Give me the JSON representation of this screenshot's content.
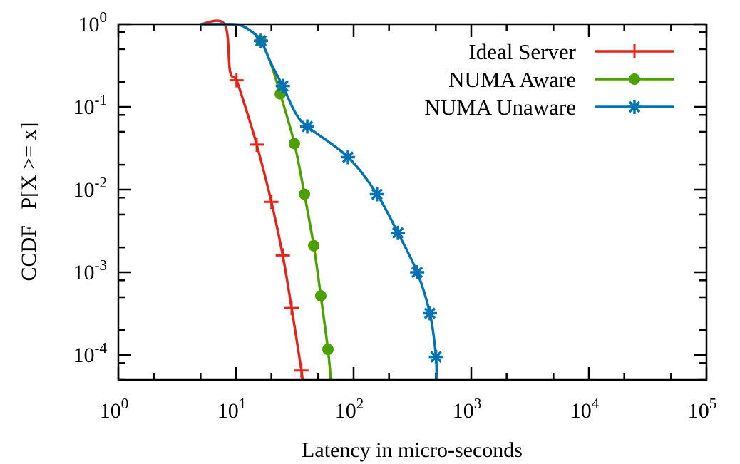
{
  "chart_data": {
    "type": "line",
    "title": "",
    "xlabel": "Latency in micro-seconds",
    "ylabel": "CCDF   P[X >= x]",
    "xscale": "log",
    "yscale": "log",
    "xlim": [
      1,
      100000
    ],
    "ylim": [
      5e-05,
      1
    ],
    "x_tick_labels": [
      {
        "base": "10",
        "exp": "0"
      },
      {
        "base": "10",
        "exp": "1"
      },
      {
        "base": "10",
        "exp": "2"
      },
      {
        "base": "10",
        "exp": "3"
      },
      {
        "base": "10",
        "exp": "4"
      },
      {
        "base": "10",
        "exp": "5"
      }
    ],
    "y_tick_labels": [
      {
        "base": "10",
        "exp": "0"
      },
      {
        "base": "10",
        "exp": "-1"
      },
      {
        "base": "10",
        "exp": "-2"
      },
      {
        "base": "10",
        "exp": "-3"
      },
      {
        "base": "10",
        "exp": "-4"
      }
    ],
    "grid": false,
    "legend_position": "top-right",
    "series": [
      {
        "name": "Ideal Server",
        "color": "#e3241b",
        "marker": "plus",
        "line": [
          [
            5,
            1
          ],
          [
            8,
            1
          ],
          [
            8.9,
            0.27
          ],
          [
            10.1,
            0.21
          ],
          [
            12,
            0.1
          ],
          [
            15,
            0.035
          ],
          [
            20,
            0.0071
          ],
          [
            25,
            0.0016
          ],
          [
            29.7,
            0.00037
          ],
          [
            36,
            6.5e-05
          ],
          [
            36.5,
            5e-05
          ]
        ],
        "markers": [
          [
            10.1,
            0.21
          ],
          [
            15,
            0.035
          ],
          [
            20,
            0.0071
          ],
          [
            25,
            0.0016
          ],
          [
            29.7,
            0.00037
          ],
          [
            36,
            6.5e-05
          ]
        ]
      },
      {
        "name": "NUMA Aware",
        "color": "#4ca000",
        "marker": "circle",
        "line": [
          [
            5,
            1
          ],
          [
            9,
            1
          ],
          [
            11,
            0.97
          ],
          [
            13.5,
            0.82
          ],
          [
            16.3,
            0.63
          ],
          [
            20,
            0.32
          ],
          [
            23.8,
            0.144
          ],
          [
            31.4,
            0.036
          ],
          [
            38.2,
            0.0088
          ],
          [
            45.8,
            0.0021
          ],
          [
            52.6,
            0.00052
          ],
          [
            60.5,
            0.000117
          ],
          [
            64,
            5e-05
          ]
        ],
        "markers": [
          [
            16.3,
            0.63
          ],
          [
            23.8,
            0.144
          ],
          [
            31.4,
            0.036
          ],
          [
            38.2,
            0.0088
          ],
          [
            45.8,
            0.0021
          ],
          [
            52.6,
            0.00052
          ],
          [
            60.5,
            0.000117
          ]
        ]
      },
      {
        "name": "NUMA Unaware",
        "color": "#0072b5",
        "marker": "star",
        "line": [
          [
            5,
            1
          ],
          [
            9,
            1
          ],
          [
            11,
            0.97
          ],
          [
            13.5,
            0.82
          ],
          [
            16.3,
            0.63
          ],
          [
            20,
            0.33
          ],
          [
            25,
            0.179
          ],
          [
            32,
            0.085
          ],
          [
            40.4,
            0.058
          ],
          [
            89.5,
            0.0247
          ],
          [
            158,
            0.0088
          ],
          [
            238,
            0.003
          ],
          [
            347,
            0.001
          ],
          [
            445,
            0.00032
          ],
          [
            502,
            9.5e-05
          ],
          [
            505,
            5e-05
          ]
        ],
        "markers": [
          [
            16.3,
            0.63
          ],
          [
            25,
            0.179
          ],
          [
            40.4,
            0.058
          ],
          [
            89.5,
            0.0247
          ],
          [
            158,
            0.0088
          ],
          [
            238,
            0.003
          ],
          [
            347,
            0.001
          ],
          [
            445,
            0.00032
          ],
          [
            502,
            9.5e-05
          ]
        ]
      }
    ]
  }
}
